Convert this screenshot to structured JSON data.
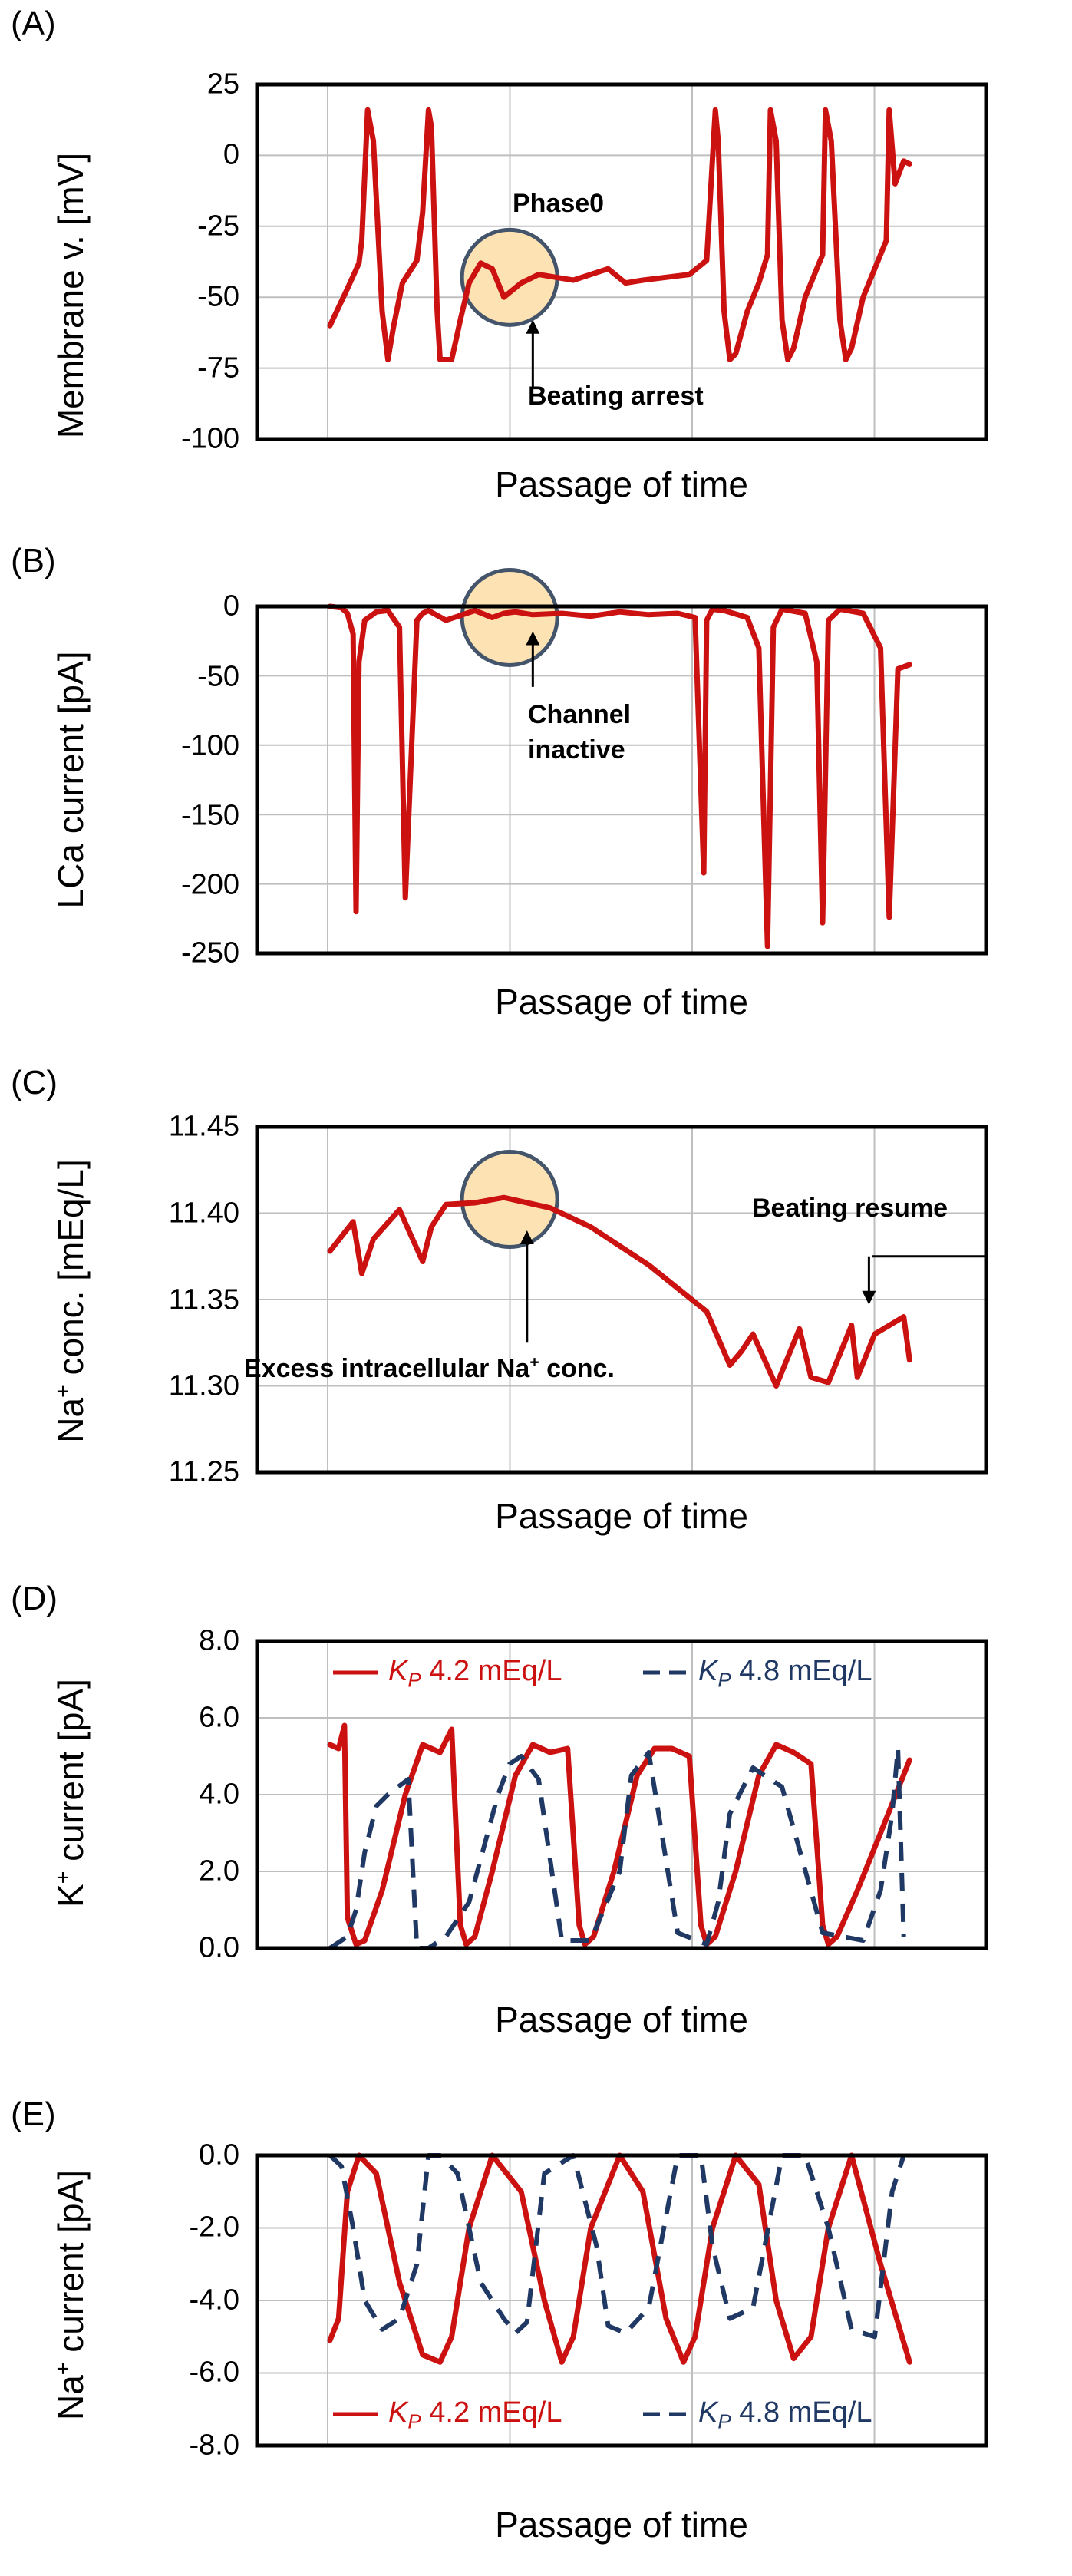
{
  "figure": {
    "panels": [
      {
        "id": "A",
        "letter": "(A)",
        "ylabel": "Membrane v. [mV]",
        "xlabel": "Passage of time",
        "ticks": [
          "25",
          "0",
          "-25",
          "-50",
          "-75",
          "-100"
        ],
        "annotations": {
          "circle": "Phase0",
          "arrow": "Beating arrest"
        }
      },
      {
        "id": "B",
        "letter": "(B)",
        "ylabel": "LCa current [pA]",
        "xlabel": "Passage of time",
        "ticks": [
          "0",
          "-50",
          "-100",
          "-150",
          "-200",
          "-250"
        ],
        "annotations": {
          "arrow_line1": "Channel",
          "arrow_line2": "inactive"
        }
      },
      {
        "id": "C",
        "letter": "(C)",
        "ylabel_main": "Na",
        "ylabel_sup": "+",
        "ylabel_rest": " conc. [mEq/L]",
        "xlabel": "Passage of time",
        "ticks": [
          "11.45",
          "11.40",
          "11.35",
          "11.30",
          "11.25"
        ],
        "annotations": {
          "resume": "Beating resume",
          "excess_main": "Excess intracellular Na",
          "excess_sup": "+",
          "excess_rest": " conc."
        }
      },
      {
        "id": "D",
        "letter": "(D)",
        "ylabel_main": "K",
        "ylabel_sup": "+",
        "ylabel_rest": " current [pA]",
        "xlabel": "Passage of time",
        "ticks": [
          "8.0",
          "6.0",
          "4.0",
          "2.0",
          "0.0"
        ],
        "legend": {
          "k_symbol": "K",
          "k_sub": "P",
          "s1_value": " 4.2 mEq/L",
          "s2_value": " 4.8 mEq/L"
        }
      },
      {
        "id": "E",
        "letter": "(E)",
        "ylabel_main": "Na",
        "ylabel_sup": "+",
        "ylabel_rest": " current [pA]",
        "xlabel": "Passage of time",
        "ticks": [
          "0.0",
          "-2.0",
          "-4.0",
          "-6.0",
          "-8.0"
        ],
        "legend": {
          "k_symbol": "K",
          "k_sub": "P",
          "s1_value": " 4.2 mEq/L",
          "s2_value": " 4.8 mEq/L"
        }
      }
    ]
  },
  "colors": {
    "red": "#cc1111",
    "navy": "#203864",
    "grid": "#bfbfbf",
    "circle_fill": "#fde2b3",
    "circle_stroke": "#44546a"
  },
  "chart_data": [
    {
      "type": "line",
      "panel": "A",
      "title": "",
      "xlabel": "Passage of time",
      "ylabel": "Membrane v. [mV]",
      "ylim": [
        -100,
        25
      ],
      "xlim": [
        0,
        10
      ],
      "series": [
        {
          "name": "Membrane voltage",
          "color": "#cc1111",
          "style": "solid",
          "x": [
            0,
            0.3,
            0.5,
            0.55,
            0.65,
            0.75,
            0.9,
            1.0,
            1.1,
            1.25,
            1.5,
            1.6,
            1.7,
            1.75,
            1.85,
            1.9,
            2.1,
            2.25,
            2.4,
            2.6,
            2.8,
            3.0,
            3.3,
            3.6,
            3.9,
            4.2,
            4.5,
            4.8,
            5.1,
            5.4,
            5.8,
            6.2,
            6.5,
            6.65,
            6.7,
            6.8,
            6.9,
            7.0,
            7.2,
            7.4,
            7.55,
            7.6,
            7.7,
            7.8,
            7.9,
            8.0,
            8.2,
            8.4,
            8.5,
            8.55,
            8.65,
            8.8,
            8.9,
            9.0,
            9.2,
            9.4,
            9.6,
            9.65,
            9.75,
            9.9,
            10.0
          ],
          "y": [
            -60,
            -47,
            -38,
            -30,
            16,
            5,
            -55,
            -72,
            -60,
            -45,
            -37,
            -20,
            16,
            10,
            -55,
            -72,
            -72,
            -58,
            -45,
            -38,
            -40,
            -50,
            -45,
            -42,
            -43,
            -44,
            -42,
            -40,
            -45,
            -44,
            -43,
            -42,
            -37,
            16,
            5,
            -55,
            -72,
            -70,
            -55,
            -45,
            -35,
            16,
            5,
            -58,
            -72,
            -68,
            -50,
            -40,
            -35,
            16,
            5,
            -58,
            -72,
            -68,
            -50,
            -40,
            -30,
            16,
            -10,
            -2,
            -3
          ]
        }
      ]
    },
    {
      "type": "line",
      "panel": "B",
      "title": "",
      "xlabel": "Passage of time",
      "ylabel": "LCa current [pA]",
      "ylim": [
        -250,
        0
      ],
      "xlim": [
        0,
        10
      ],
      "series": [
        {
          "name": "LCa current",
          "color": "#cc1111",
          "style": "solid",
          "x": [
            0,
            0.2,
            0.3,
            0.4,
            0.45,
            0.5,
            0.6,
            0.8,
            1.0,
            1.2,
            1.3,
            1.5,
            1.6,
            1.7,
            2.0,
            2.5,
            2.8,
            3.0,
            3.2,
            3.5,
            4.0,
            4.5,
            5.0,
            5.5,
            6.0,
            6.3,
            6.45,
            6.5,
            6.6,
            6.8,
            7.2,
            7.4,
            7.55,
            7.65,
            7.8,
            8.2,
            8.4,
            8.5,
            8.6,
            8.8,
            9.2,
            9.5,
            9.65,
            9.8,
            10.0
          ],
          "y": [
            0,
            -1,
            -5,
            -20,
            -220,
            -40,
            -10,
            -4,
            -3,
            -15,
            -210,
            -10,
            -5,
            -3,
            -10,
            -3,
            -8,
            -5,
            -4,
            -6,
            -5,
            -7,
            -4,
            -6,
            -5,
            -8,
            -192,
            -10,
            -2,
            -3,
            -8,
            -30,
            -245,
            -15,
            -2,
            -5,
            -40,
            -228,
            -10,
            -2,
            -5,
            -30,
            -224,
            -45,
            -42
          ]
        }
      ]
    },
    {
      "type": "line",
      "panel": "C",
      "title": "",
      "xlabel": "Passage of time",
      "ylabel": "Na+ conc. [mEq/L]",
      "ylim": [
        11.25,
        11.45
      ],
      "xlim": [
        0,
        10
      ],
      "series": [
        {
          "name": "Na+ conc.",
          "color": "#cc1111",
          "style": "solid",
          "x": [
            0,
            0.4,
            0.55,
            0.75,
            1.2,
            1.6,
            1.75,
            2.0,
            2.5,
            3.0,
            3.8,
            4.5,
            5.5,
            6.5,
            6.9,
            7.1,
            7.3,
            7.7,
            8.1,
            8.3,
            8.6,
            9.0,
            9.1,
            9.4,
            9.9,
            10.0
          ],
          "y": [
            11.378,
            11.395,
            11.365,
            11.385,
            11.402,
            11.372,
            11.392,
            11.405,
            11.406,
            11.409,
            11.403,
            11.392,
            11.37,
            11.343,
            11.312,
            11.32,
            11.33,
            11.3,
            11.333,
            11.305,
            11.302,
            11.335,
            11.305,
            11.33,
            11.34,
            11.315
          ]
        }
      ]
    },
    {
      "type": "line",
      "panel": "D",
      "title": "",
      "xlabel": "Passage of time",
      "ylabel": "K+ current [pA]",
      "ylim": [
        0,
        8
      ],
      "xlim": [
        0,
        10
      ],
      "legend": [
        "KP 4.2 mEq/L",
        "KP 4.8 mEq/L"
      ],
      "series": [
        {
          "name": "KP 4.2 mEq/L",
          "color": "#cc1111",
          "style": "solid",
          "x": [
            0,
            0.15,
            0.25,
            0.3,
            0.45,
            0.6,
            0.9,
            1.3,
            1.6,
            1.9,
            2.1,
            2.25,
            2.35,
            2.5,
            2.8,
            3.2,
            3.5,
            3.8,
            4.1,
            4.3,
            4.4,
            4.55,
            4.9,
            5.3,
            5.6,
            5.9,
            6.2,
            6.4,
            6.5,
            6.65,
            7.0,
            7.4,
            7.7,
            8.0,
            8.3,
            8.5,
            8.6,
            8.75,
            9.1,
            9.5,
            10.0
          ],
          "y": [
            5.3,
            5.2,
            5.8,
            0.8,
            0.1,
            0.2,
            1.5,
            4.0,
            5.3,
            5.1,
            5.7,
            0.6,
            0.1,
            0.3,
            2.0,
            4.5,
            5.3,
            5.1,
            5.2,
            0.6,
            0.1,
            0.3,
            2.0,
            4.5,
            5.2,
            5.2,
            5.0,
            0.6,
            0.1,
            0.3,
            2.0,
            4.5,
            5.3,
            5.1,
            4.8,
            0.6,
            0.1,
            0.3,
            1.5,
            3.0,
            4.9
          ]
        },
        {
          "name": "KP 4.8 mEq/L",
          "color": "#203864",
          "style": "dashed",
          "x": [
            0,
            0.3,
            0.45,
            0.6,
            0.8,
            1.0,
            1.35,
            1.5,
            1.7,
            2.0,
            2.4,
            2.9,
            3.1,
            3.3,
            3.6,
            4.0,
            4.5,
            5.0,
            5.2,
            5.5,
            6.0,
            6.5,
            6.7,
            6.9,
            7.3,
            7.8,
            8.5,
            9.2,
            9.5,
            9.7,
            9.8,
            9.9
          ],
          "y": [
            0,
            0.3,
            1.0,
            2.5,
            3.7,
            4.0,
            4.4,
            0,
            0,
            0.3,
            1.2,
            4.0,
            4.8,
            5.0,
            4.4,
            0.2,
            0.2,
            2.0,
            4.5,
            5.1,
            0.4,
            0.1,
            1.2,
            3.5,
            4.7,
            4.2,
            0.4,
            0.2,
            1.5,
            3.5,
            5.2,
            0.3
          ]
        }
      ]
    },
    {
      "type": "line",
      "panel": "E",
      "title": "",
      "xlabel": "Passage of time",
      "ylabel": "Na+ current [pA]",
      "ylim": [
        -8,
        0
      ],
      "xlim": [
        0,
        10
      ],
      "legend": [
        "KP 4.2 mEq/L",
        "KP 4.8 mEq/L"
      ],
      "series": [
        {
          "name": "KP 4.2 mEq/L",
          "color": "#cc1111",
          "style": "solid",
          "x": [
            0,
            0.15,
            0.3,
            0.5,
            0.8,
            1.2,
            1.6,
            1.9,
            2.1,
            2.4,
            2.8,
            3.3,
            3.7,
            4.0,
            4.2,
            4.5,
            5.0,
            5.4,
            5.8,
            6.1,
            6.3,
            6.6,
            7.0,
            7.4,
            7.7,
            8.0,
            8.3,
            8.6,
            9.0,
            9.5,
            10.0
          ],
          "y": [
            -5.1,
            -4.5,
            -1.0,
            0,
            -0.5,
            -3.5,
            -5.5,
            -5.7,
            -5.0,
            -2.0,
            0,
            -1.0,
            -4.0,
            -5.7,
            -5.0,
            -2.0,
            0,
            -1.0,
            -4.5,
            -5.7,
            -5.0,
            -2.0,
            0,
            -0.8,
            -4.0,
            -5.6,
            -5.0,
            -2.0,
            0,
            -3.0,
            -5.7
          ]
        },
        {
          "name": "KP 4.8 mEq/L",
          "color": "#203864",
          "style": "dashed",
          "x": [
            0,
            0.2,
            0.4,
            0.6,
            0.9,
            1.2,
            1.5,
            1.7,
            1.9,
            2.2,
            2.6,
            3.0,
            3.2,
            3.4,
            3.7,
            4.2,
            4.6,
            4.8,
            5.1,
            5.5,
            6.0,
            6.4,
            6.6,
            6.9,
            7.3,
            7.8,
            8.2,
            8.6,
            9.0,
            9.4,
            9.7,
            9.9
          ],
          "y": [
            0,
            -0.3,
            -2.0,
            -4.0,
            -4.8,
            -4.5,
            -3.0,
            0,
            0,
            -0.5,
            -3.5,
            -4.5,
            -4.9,
            -4.6,
            -0.5,
            0,
            -2.5,
            -4.7,
            -4.9,
            -4.2,
            0,
            0,
            -2.5,
            -4.5,
            -4.2,
            0,
            0,
            -2.0,
            -4.8,
            -5.0,
            -1.0,
            0
          ]
        }
      ]
    }
  ]
}
